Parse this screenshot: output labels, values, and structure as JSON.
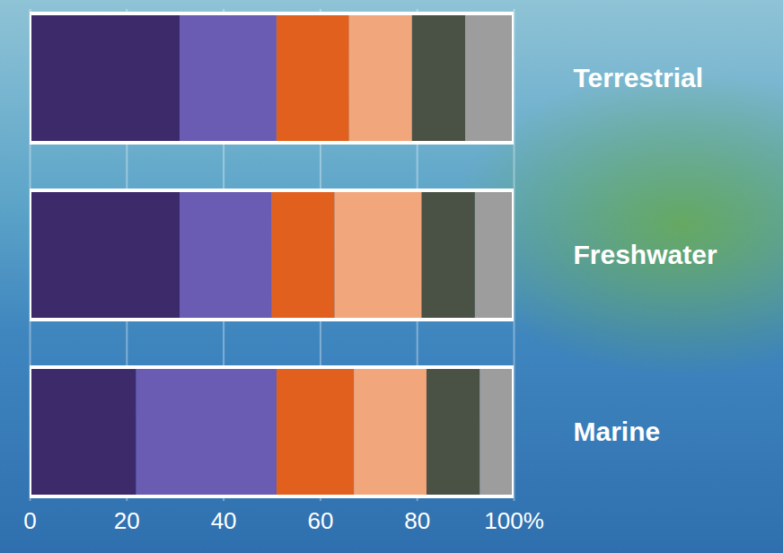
{
  "chart_data": {
    "type": "bar",
    "orientation": "horizontal",
    "stacked": true,
    "categories": [
      "Terrestrial",
      "Freshwater",
      "Marine"
    ],
    "series": [
      {
        "color": "#3d2a6b",
        "values": [
          31,
          31,
          22
        ]
      },
      {
        "color": "#6a5bb3",
        "values": [
          20,
          19,
          29
        ]
      },
      {
        "color": "#e2601d",
        "values": [
          15,
          13,
          16
        ]
      },
      {
        "color": "#f2a67c",
        "values": [
          13,
          18,
          15
        ]
      },
      {
        "color": "#4a5245",
        "values": [
          11,
          11,
          11
        ]
      },
      {
        "color": "#9d9d9d",
        "values": [
          10,
          8,
          7
        ]
      }
    ],
    "xlim": [
      0,
      100
    ],
    "xticks": [
      0,
      20,
      40,
      60,
      80,
      {
        "value": 100,
        "label": "100%"
      }
    ],
    "grid": true
  }
}
